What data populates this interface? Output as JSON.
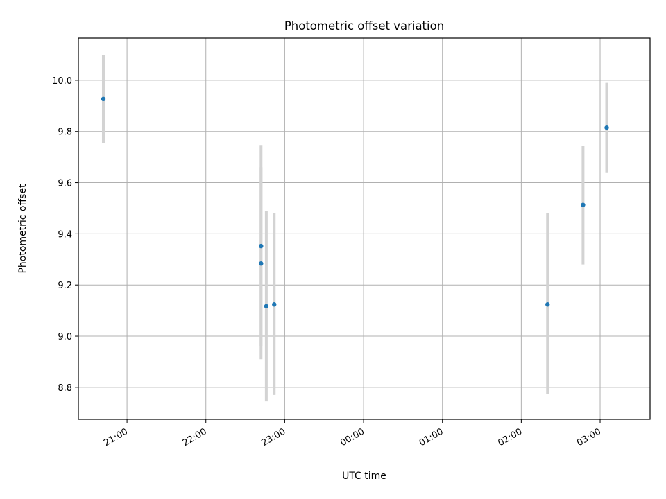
{
  "chart_data": {
    "type": "scatter",
    "title": "Photometric offset variation",
    "xlabel": "UTC time",
    "ylabel": "Photometric offset",
    "x_ticks": [
      "21:00",
      "22:00",
      "23:00",
      "00:00",
      "01:00",
      "02:00",
      "03:00"
    ],
    "x_tick_hours": [
      21,
      22,
      23,
      24,
      25,
      26,
      27
    ],
    "xlim": [
      "20:23",
      "03:38"
    ],
    "y_ticks": [
      8.8,
      9.0,
      9.2,
      9.4,
      9.6,
      9.8,
      10.0
    ],
    "ylim": [
      8.675,
      10.165
    ],
    "grid": true,
    "points": [
      {
        "time": "20:42",
        "y": 9.927,
        "yerr_low": 9.755,
        "yerr_high": 10.098
      },
      {
        "time": "22:42",
        "y": 9.352,
        "yerr_low": 8.962,
        "yerr_high": 9.747
      },
      {
        "time": "22:42",
        "y": 9.284,
        "yerr_low": 8.91,
        "yerr_high": 9.66
      },
      {
        "time": "22:46",
        "y": 9.117,
        "yerr_low": 8.745,
        "yerr_high": 9.49
      },
      {
        "time": "22:52",
        "y": 9.124,
        "yerr_low": 8.77,
        "yerr_high": 9.48
      },
      {
        "time": "02:20",
        "y": 9.124,
        "yerr_low": 8.773,
        "yerr_high": 9.48
      },
      {
        "time": "02:47",
        "y": 9.513,
        "yerr_low": 9.28,
        "yerr_high": 9.745
      },
      {
        "time": "03:05",
        "y": 9.815,
        "yerr_low": 9.64,
        "yerr_high": 9.99
      }
    ],
    "colors": {
      "marker": "#1f77b4",
      "errorbar": "#d3d3d3",
      "grid": "#b0b0b0",
      "axes": "#000000"
    }
  }
}
